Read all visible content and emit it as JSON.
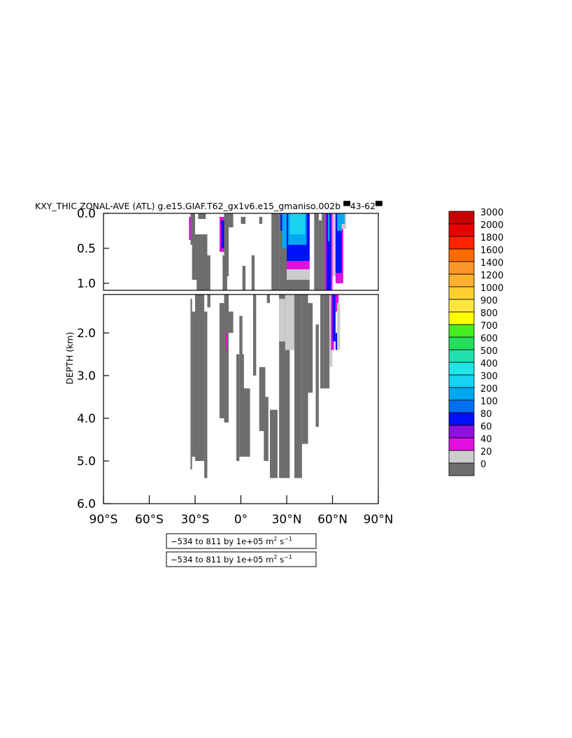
{
  "chart_data": {
    "type": "heatmap",
    "title": "KXY_THIC ZONAL-AVE (ATL) g.e15.GIAF.T62_gx1v6.e15_gmaniso.002b ▀43-62▀",
    "ylabel": "DEPTH (km)",
    "xlabel": "",
    "xlim": [
      -90,
      90
    ],
    "ylim": [
      6.0,
      0.0
    ],
    "upper_panel_ylim": [
      0.0,
      1.1
    ],
    "lower_panel_ylim": [
      1.1,
      6.0
    ],
    "x_ticks": [
      {
        "value": -90,
        "label": "90°S"
      },
      {
        "value": -60,
        "label": "60°S"
      },
      {
        "value": -30,
        "label": "30°S"
      },
      {
        "value": 0,
        "label": "0°"
      },
      {
        "value": 30,
        "label": "30°N"
      },
      {
        "value": 60,
        "label": "60°N"
      },
      {
        "value": 90,
        "label": "90°N"
      }
    ],
    "upper_y_ticks": [
      {
        "value": 0.0,
        "label": "0.0"
      },
      {
        "value": 0.5,
        "label": "0.5"
      },
      {
        "value": 1.0,
        "label": "1.0"
      }
    ],
    "lower_y_ticks": [
      {
        "value": 2.0,
        "label": "2.0"
      },
      {
        "value": 3.0,
        "label": "3.0"
      },
      {
        "value": 4.0,
        "label": "4.0"
      },
      {
        "value": 5.0,
        "label": "5.0"
      },
      {
        "value": 6.0,
        "label": "6.0"
      }
    ],
    "colorbar": {
      "levels": [
        "3000",
        "2000",
        "1800",
        "1600",
        "1400",
        "1200",
        "1000",
        "900",
        "800",
        "700",
        "600",
        "500",
        "400",
        "300",
        "200",
        "100",
        "80",
        "60",
        "40",
        "20",
        "0"
      ],
      "colors": [
        "#c40000",
        "#e80000",
        "#ff2200",
        "#ff6a00",
        "#ff9628",
        "#ffb030",
        "#ffcf30",
        "#ffe640",
        "#ffff00",
        "#44ee22",
        "#22e05a",
        "#22e0b0",
        "#20e6e6",
        "#18d2f0",
        "#00a8f0",
        "#0070f0",
        "#0010f8",
        "#9010e0",
        "#e010e0",
        "#cccccc",
        "#6e6e6e"
      ]
    },
    "regions": [
      {
        "x0": -34,
        "x1": -31,
        "y0": 0.05,
        "y1": 0.38,
        "c": "#e010e0"
      },
      {
        "x0": -33,
        "x1": -31,
        "y0": 0.05,
        "y1": 0.25,
        "c": "#0010f8"
      },
      {
        "x0": -33,
        "x1": -30,
        "y0": 0.0,
        "y1": 0.45,
        "c": "#6e6e6e"
      },
      {
        "x0": -32,
        "x1": -22,
        "y0": 0.3,
        "y1": 0.95,
        "c": "#6e6e6e"
      },
      {
        "x0": -29,
        "x1": -20,
        "y0": 0.6,
        "y1": 1.1,
        "c": "#6e6e6e"
      },
      {
        "x0": -28,
        "x1": -23,
        "y0": 0.0,
        "y1": 0.08,
        "c": "#6e6e6e"
      },
      {
        "x0": -14,
        "x1": -9,
        "y0": 0.05,
        "y1": 0.55,
        "c": "#e010e0"
      },
      {
        "x0": -13,
        "x1": -10,
        "y0": 0.1,
        "y1": 0.5,
        "c": "#0010f8"
      },
      {
        "x0": -11,
        "x1": -8,
        "y0": 0.0,
        "y1": 0.9,
        "c": "#6e6e6e"
      },
      {
        "x0": -12,
        "x1": -9,
        "y0": 0.6,
        "y1": 1.1,
        "c": "#6e6e6e"
      },
      {
        "x0": -8,
        "x1": -5,
        "y0": 0.0,
        "y1": 0.2,
        "c": "#6e6e6e"
      },
      {
        "x0": 0,
        "x1": 3,
        "y0": 0.05,
        "y1": 0.15,
        "c": "#6e6e6e"
      },
      {
        "x0": 1,
        "x1": 3,
        "y0": 0.75,
        "y1": 1.1,
        "c": "#6e6e6e"
      },
      {
        "x0": 7,
        "x1": 9,
        "y0": 0.6,
        "y1": 1.1,
        "c": "#6e6e6e"
      },
      {
        "x0": 12,
        "x1": 14,
        "y0": 0.05,
        "y1": 0.15,
        "c": "#6e6e6e"
      },
      {
        "x0": 20,
        "x1": 25,
        "y0": 0.0,
        "y1": 1.1,
        "c": "#6e6e6e"
      },
      {
        "x0": 25,
        "x1": 31,
        "y0": 0.0,
        "y1": 1.1,
        "c": "#6e6e6e"
      },
      {
        "x0": 26,
        "x1": 28,
        "y0": 0.0,
        "y1": 0.25,
        "c": "#0010f8"
      },
      {
        "x0": 27,
        "x1": 30,
        "y0": 0.0,
        "y1": 0.5,
        "c": "#00a8f0"
      },
      {
        "x0": 30,
        "x1": 45,
        "y0": 0.0,
        "y1": 1.1,
        "c": "#6e6e6e"
      },
      {
        "x0": 30,
        "x1": 45,
        "y0": 0.0,
        "y1": 0.95,
        "c": "#cccccc"
      },
      {
        "x0": 30,
        "x1": 45,
        "y0": 0.0,
        "y1": 0.8,
        "c": "#e010e0"
      },
      {
        "x0": 30,
        "x1": 45,
        "y0": 0.0,
        "y1": 0.68,
        "c": "#0010f8"
      },
      {
        "x0": 31,
        "x1": 43,
        "y0": 0.0,
        "y1": 0.45,
        "c": "#00a8f0"
      },
      {
        "x0": 32,
        "x1": 42,
        "y0": 0.0,
        "y1": 0.3,
        "c": "#18d2f0"
      },
      {
        "x0": 48,
        "x1": 51,
        "y0": 0.0,
        "y1": 1.1,
        "c": "#6e6e6e"
      },
      {
        "x0": 51,
        "x1": 53,
        "y0": 0.1,
        "y1": 1.1,
        "c": "#6e6e6e"
      },
      {
        "x0": 53,
        "x1": 55,
        "y0": 0.0,
        "y1": 1.1,
        "c": "#6e6e6e"
      },
      {
        "x0": 55,
        "x1": 60,
        "y0": 0.0,
        "y1": 1.1,
        "c": "#e010e0"
      },
      {
        "x0": 56,
        "x1": 59,
        "y0": 0.0,
        "y1": 1.1,
        "c": "#0010f8"
      },
      {
        "x0": 57,
        "x1": 58,
        "y0": 0.0,
        "y1": 0.4,
        "c": "#00a8f0"
      },
      {
        "x0": 60,
        "x1": 62,
        "y0": 0.0,
        "y1": 0.9,
        "c": "#cccccc"
      },
      {
        "x0": 62,
        "x1": 67,
        "y0": 0.0,
        "y1": 1.0,
        "c": "#e010e0"
      },
      {
        "x0": 62,
        "x1": 66,
        "y0": 0.0,
        "y1": 0.85,
        "c": "#0010f8"
      },
      {
        "x0": 63,
        "x1": 66,
        "y0": 0.0,
        "y1": 0.25,
        "c": "#00a8f0"
      },
      {
        "x0": 66,
        "x1": 69,
        "y0": 0.0,
        "y1": 0.22,
        "c": "#cccccc"
      },
      {
        "x0": 66,
        "x1": 68,
        "y0": 0.0,
        "y1": 0.15,
        "c": "#00a8f0"
      },
      {
        "x0": -33,
        "x1": -32,
        "y0": 1.2,
        "y1": 5.2,
        "c": "#6e6e6e"
      },
      {
        "x0": -32,
        "x1": -28,
        "y0": 1.5,
        "y1": 4.9,
        "c": "#6e6e6e"
      },
      {
        "x0": -30,
        "x1": -24,
        "y0": 1.1,
        "y1": 5.0,
        "c": "#6e6e6e"
      },
      {
        "x0": -24,
        "x1": -22,
        "y0": 1.5,
        "y1": 5.4,
        "c": "#6e6e6e"
      },
      {
        "x0": -22,
        "x1": -20,
        "y0": 1.1,
        "y1": 1.4,
        "c": "#6e6e6e"
      },
      {
        "x0": -14,
        "x1": -11,
        "y0": 1.3,
        "y1": 4.0,
        "c": "#6e6e6e"
      },
      {
        "x0": -11,
        "x1": -8,
        "y0": 1.1,
        "y1": 4.1,
        "c": "#6e6e6e"
      },
      {
        "x0": -10,
        "x1": -9,
        "y0": 2.0,
        "y1": 2.4,
        "c": "#e010e0"
      },
      {
        "x0": -8,
        "x1": -5,
        "y0": 1.5,
        "y1": 2.0,
        "c": "#6e6e6e"
      },
      {
        "x0": -3,
        "x1": -1,
        "y0": 2.5,
        "y1": 5.0,
        "c": "#6e6e6e"
      },
      {
        "x0": -1,
        "x1": 6,
        "y0": 1.6,
        "y1": 4.9,
        "c": "#6e6e6e"
      },
      {
        "x0": 1,
        "x1": 6,
        "y0": 1.6,
        "y1": 2.5,
        "c": "#ffffff"
      },
      {
        "x0": 2,
        "x1": 6,
        "y0": 1.8,
        "y1": 3.3,
        "c": "#ffffff"
      },
      {
        "x0": 8,
        "x1": 10,
        "y0": 1.1,
        "y1": 3.0,
        "c": "#6e6e6e"
      },
      {
        "x0": 12,
        "x1": 16,
        "y0": 2.8,
        "y1": 4.3,
        "c": "#6e6e6e"
      },
      {
        "x0": 15,
        "x1": 18,
        "y0": 3.5,
        "y1": 5.0,
        "c": "#6e6e6e"
      },
      {
        "x0": 17,
        "x1": 19,
        "y0": 1.1,
        "y1": 1.3,
        "c": "#6e6e6e"
      },
      {
        "x0": 19,
        "x1": 24,
        "y0": 3.8,
        "y1": 5.4,
        "c": "#6e6e6e"
      },
      {
        "x0": 25,
        "x1": 32,
        "y0": 1.1,
        "y1": 5.4,
        "c": "#6e6e6e"
      },
      {
        "x0": 25,
        "x1": 29,
        "y0": 1.2,
        "y1": 2.2,
        "c": "#cccccc"
      },
      {
        "x0": 29,
        "x1": 35,
        "y0": 1.1,
        "y1": 2.4,
        "c": "#cccccc"
      },
      {
        "x0": 35,
        "x1": 40,
        "y0": 1.1,
        "y1": 5.4,
        "c": "#6e6e6e"
      },
      {
        "x0": 40,
        "x1": 44,
        "y0": 1.1,
        "y1": 4.6,
        "c": "#6e6e6e"
      },
      {
        "x0": 44,
        "x1": 47,
        "y0": 1.3,
        "y1": 3.4,
        "c": "#6e6e6e"
      },
      {
        "x0": 49,
        "x1": 51,
        "y0": 1.8,
        "y1": 4.2,
        "c": "#6e6e6e"
      },
      {
        "x0": 52,
        "x1": 54,
        "y0": 1.1,
        "y1": 3.3,
        "c": "#6e6e6e"
      },
      {
        "x0": 54,
        "x1": 58,
        "y0": 1.1,
        "y1": 3.3,
        "c": "#6e6e6e"
      },
      {
        "x0": 58,
        "x1": 60,
        "y0": 1.1,
        "y1": 2.8,
        "c": "#cccccc"
      },
      {
        "x0": 59,
        "x1": 61,
        "y0": 1.1,
        "y1": 2.4,
        "c": "#e010e0"
      },
      {
        "x0": 60,
        "x1": 62,
        "y0": 1.1,
        "y1": 2.2,
        "c": "#0010f8"
      },
      {
        "x0": 62,
        "x1": 64,
        "y0": 1.1,
        "y1": 1.5,
        "c": "#e010e0"
      },
      {
        "x0": 63,
        "x1": 65,
        "y0": 1.3,
        "y1": 2.4,
        "c": "#cccccc"
      },
      {
        "x0": 62,
        "x1": 63,
        "y0": 2.0,
        "y1": 2.4,
        "c": "#0010f8"
      }
    ],
    "info_boxes": [
      {
        "label": "−534 to 811 by 1e+05 m",
        "sup1": "2",
        "mid": " s",
        "sup2": "−1"
      },
      {
        "label": "−534 to 811 by 1e+05 m",
        "sup1": "2",
        "mid": " s",
        "sup2": "−1"
      }
    ]
  }
}
